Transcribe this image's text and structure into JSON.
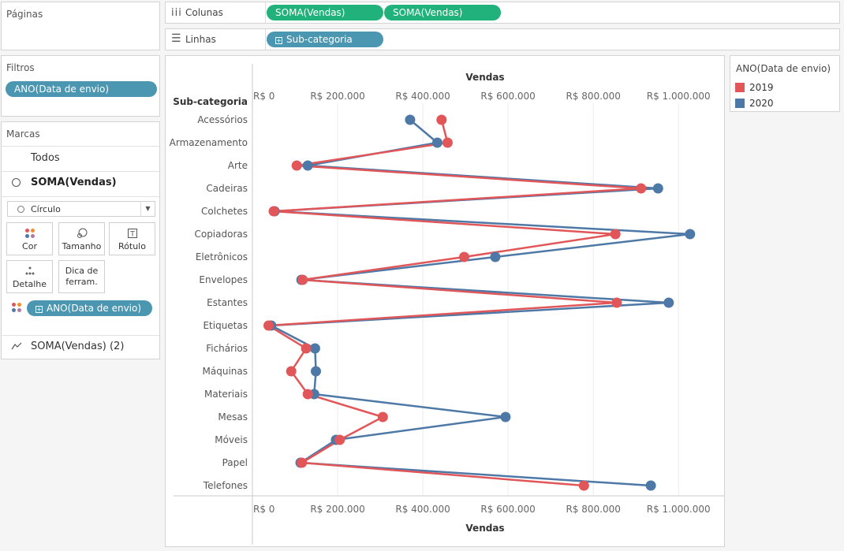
{
  "pages_panel": {
    "title": "Páginas"
  },
  "columns_shelf": {
    "icon": "columns-icon",
    "label": "Colunas",
    "pills": [
      "SOMA(Vendas)",
      "SOMA(Vendas)"
    ]
  },
  "rows_shelf": {
    "icon": "rows-icon",
    "label": "Linhas",
    "pills": [
      "Sub-categoria"
    ]
  },
  "filters_panel": {
    "title": "Filtros",
    "pills": [
      "ANO(Data de envio)"
    ]
  },
  "marks_panel": {
    "title": "Marcas",
    "cards": [
      "Todos",
      "SOMA(Vendas)",
      "SOMA(Vendas) (2)"
    ],
    "mark_type": "Círculo",
    "buttons": [
      {
        "label": "Cor",
        "icon": "color-dots-icon"
      },
      {
        "label": "Tamanho",
        "icon": "size-icon"
      },
      {
        "label": "Rótulo",
        "icon": "label-icon"
      },
      {
        "label": "Detalhe",
        "icon": "detail-dots-icon"
      },
      {
        "label": "Dica de\nferram.",
        "icon": ""
      }
    ],
    "color_pill": "ANO(Data de envio)"
  },
  "legend": {
    "title": "ANO(Data de envio)",
    "items": [
      {
        "label": "2019",
        "color": "#e15759"
      },
      {
        "label": "2020",
        "color": "#4e79a7"
      }
    ]
  },
  "chart_data": {
    "type": "line",
    "title": "",
    "xlabel": "Vendas",
    "ylabel": "Sub-categoria",
    "x_ticks": [
      "R$ 0",
      "R$ 200.000",
      "R$ 400.000",
      "R$ 600.000",
      "R$ 800.000",
      "R$ 1.000.000"
    ],
    "x_tick_values": [
      0,
      200000,
      400000,
      600000,
      800000,
      1000000
    ],
    "xlim": [
      0,
      1070000
    ],
    "grid": true,
    "legend_position": "right",
    "categories": [
      "Acessórios",
      "Armazenamento",
      "Arte",
      "Cadeiras",
      "Colchetes",
      "Copiadoras",
      "Eletrônicos",
      "Envelopes",
      "Estantes",
      "Etiquetas",
      "Fichários",
      "Máquinas",
      "Materiais",
      "Mesas",
      "Móveis",
      "Papel",
      "Telefones"
    ],
    "series": [
      {
        "name": "2019",
        "color": "#e15759",
        "values": [
          444000,
          458000,
          104000,
          912000,
          50000,
          852000,
          497000,
          118000,
          855000,
          38000,
          126000,
          91000,
          130000,
          306000,
          205000,
          116000,
          778000
        ]
      },
      {
        "name": "2020",
        "color": "#4e79a7",
        "values": [
          370000,
          434000,
          130000,
          952000,
          52000,
          1027000,
          570000,
          115000,
          977000,
          44000,
          147000,
          149000,
          145000,
          594000,
          196000,
          113000,
          935000
        ]
      }
    ]
  }
}
